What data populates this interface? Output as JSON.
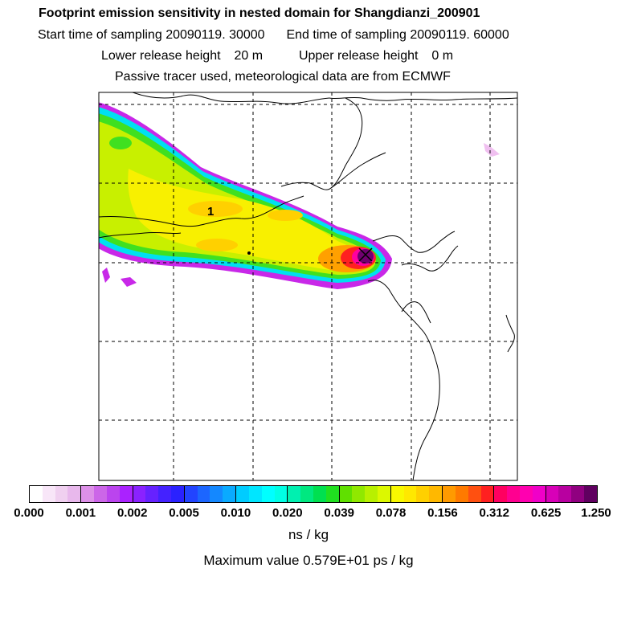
{
  "title": "Footprint emission sensitivity in nested domain for Shangdianzi_200901",
  "sampling": {
    "start_label": "Start time of sampling",
    "start_value": "20090119. 30000",
    "end_label": "End time of sampling",
    "end_value": "20090119. 60000"
  },
  "release": {
    "lower_label": "Lower release height",
    "lower_value": "20 m",
    "upper_label": "Upper release height",
    "upper_value": "0 m"
  },
  "tracer_line": "Passive tracer used, meteorological data are from ECMWF",
  "map": {
    "label_1": "1",
    "receptor_marker": "x-marker-icon"
  },
  "colorbar": {
    "ticks": [
      "0.000",
      "0.001",
      "0.002",
      "0.005",
      "0.010",
      "0.020",
      "0.039",
      "0.078",
      "0.156",
      "0.312",
      "0.625",
      "1.250"
    ],
    "colors": [
      [
        "#ffffff",
        "#f8e6f8",
        "#f0d0f0",
        "#e8b8ec"
      ],
      [
        "#dd90e8",
        "#cc66e8",
        "#bb44ee",
        "#aa22ff"
      ],
      [
        "#8a22ff",
        "#6622ff",
        "#4422ff",
        "#2a22ff"
      ],
      [
        "#2244ff",
        "#1c66ff",
        "#1488ff",
        "#0aaaff"
      ],
      [
        "#00ccff",
        "#00e6ff",
        "#00ffff",
        "#00ffe4"
      ],
      [
        "#00f0b0",
        "#00e880",
        "#00e050",
        "#20e020"
      ],
      [
        "#60e000",
        "#90e800",
        "#b8f000",
        "#dcf800"
      ],
      [
        "#f8f800",
        "#ffe800",
        "#ffd000",
        "#ffb800"
      ],
      [
        "#ff9a00",
        "#ff7a00",
        "#ff5010",
        "#ff2020"
      ],
      [
        "#ff0060",
        "#ff0090",
        "#ff00b0",
        "#f000c8"
      ],
      [
        "#d800b8",
        "#b800a0",
        "#900080",
        "#600060"
      ]
    ]
  },
  "units": "ns / kg",
  "maximum": "Maximum value  0.579E+01 ps / kg"
}
